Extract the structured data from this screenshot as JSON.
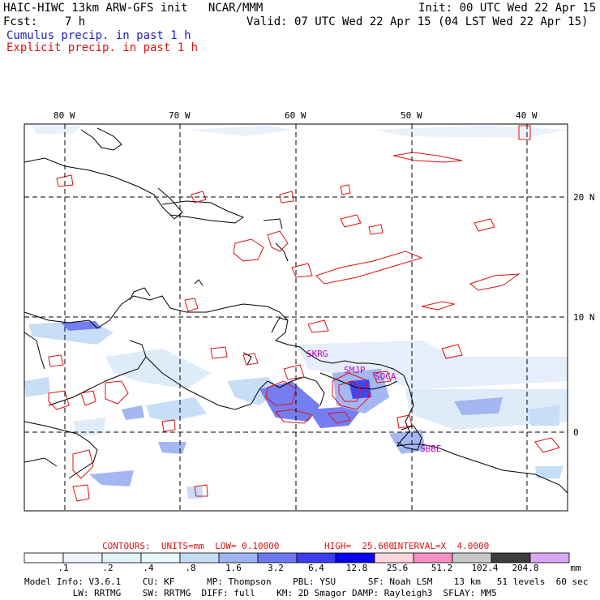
{
  "header": {
    "model_title": "HAIC-HIWC 13km ARW-GFS init   NCAR/MMM",
    "init_time": "Init: 00 UTC Wed 22 Apr 15",
    "fcst_label": "Fcst:    7 h",
    "valid_time": "Valid: 07 UTC Wed 22 Apr 15 (04 LST Wed 22 Apr 15)",
    "cumulus_label": "Cumulus precip. in past 1 h",
    "explicit_label": "Explicit precip. in past 1 h"
  },
  "map": {
    "lon_labels": [
      "80 W",
      "70 W",
      "60 W",
      "50 W",
      "40 W"
    ],
    "lat_labels": [
      "20 N",
      "10 N",
      "0"
    ],
    "stations": [
      "SKRG",
      "SMJP",
      "SOCA",
      "SBBE"
    ]
  },
  "contours": {
    "caption_units": "CONTOURS:  UNITS=mm  LOW= 0.10000",
    "caption_high": "HIGH=  25.600",
    "caption_interval": "INTERVAL=X  4.0000"
  },
  "colorbar": {
    "ticks": [
      ".1",
      ".2",
      ".4",
      ".8",
      "1.6",
      "3.2",
      "6.4",
      "12.8",
      "25.6",
      "51.2",
      "102.4",
      "204.8"
    ],
    "unit": "mm",
    "colors": [
      "#ffffff",
      "#eef5ff",
      "#e0f4f8",
      "#e8faff",
      "#c6dcf6",
      "#a0b4f2",
      "#6e78f0",
      "#3c3cf0",
      "#0a00ee",
      "#ffd6dc",
      "#f590c2",
      "#c8c8c8",
      "#3c3c3c",
      "#d8a8f4"
    ]
  },
  "footer": {
    "line1": "Model Info: V3.6.1    CU: KF      MP: Thompson    PBL: YSU      SF: Noah LSM    13 km   51 levels  60 sec",
    "line2": "         LW: RRTMG    SW: RRTMG  DIFF: full    KM: 2D Smagor DAMP: Rayleigh3  SFLAY: MM5"
  }
}
